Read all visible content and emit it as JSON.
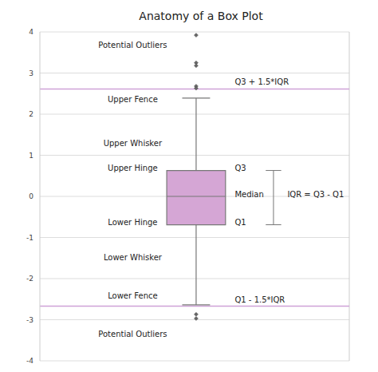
{
  "chart_data": {
    "type": "box",
    "title": "Anatomy of a Box Plot",
    "q1": -0.69,
    "median": 0,
    "q3": 0.63,
    "whisker_low": -2.64,
    "whisker_high": 2.39,
    "fences": [
      2.61,
      -2.67
    ],
    "outliers": [
      3.92,
      3.25,
      3.18,
      2.68,
      2.63,
      -2.87,
      -2.97
    ],
    "color": "#d5a6d5",
    "ylim": [
      -4,
      4
    ],
    "yticks": [
      -4,
      -3,
      -2,
      -1,
      0,
      1,
      2,
      3,
      4
    ],
    "grid": true,
    "tick_labels": "y",
    "annotations": [
      {
        "text": "Potential Outliers",
        "y": 3.67
      },
      {
        "text": "Q3 + 1.5*IQR",
        "y": 2.79
      },
      {
        "text": "Upper Fence",
        "y": 2.35
      },
      {
        "text": "Upper Whisker",
        "y": 1.3
      },
      {
        "text": "Upper Hinge",
        "y": 0.69
      },
      {
        "text": "Q3",
        "y": 0.69
      },
      {
        "text": "Median",
        "y": 0.04
      },
      {
        "text": "IQR = Q3 - Q1",
        "y": 0.04
      },
      {
        "text": "Lower Hinge",
        "y": -0.63
      },
      {
        "text": "Q1",
        "y": -0.63
      },
      {
        "text": "Lower Whisker",
        "y": -1.49
      },
      {
        "text": "Lower Fence",
        "y": -2.41
      },
      {
        "text": "Q1 - 1.5*IQR",
        "y": -2.51
      },
      {
        "text": "Potential Outliers",
        "y": -3.35
      }
    ]
  }
}
